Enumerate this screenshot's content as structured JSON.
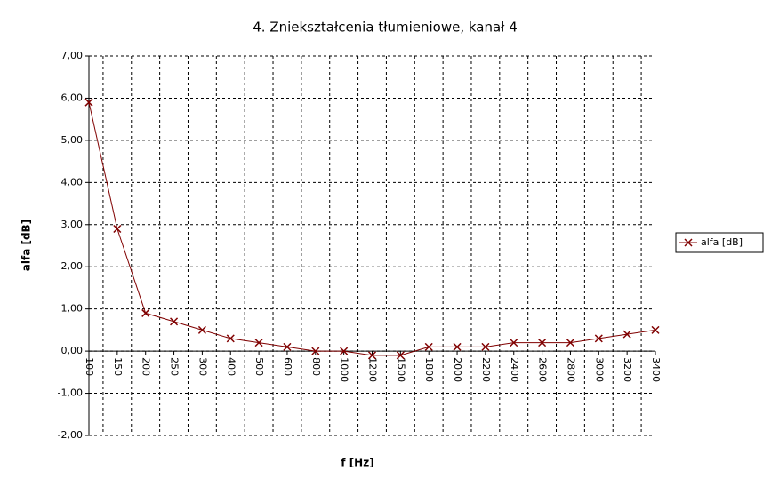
{
  "chart_data": {
    "type": "line",
    "title": "4. Zniekształcenia tłumieniowe, kanał 4",
    "x_label": "f [Hz]",
    "y_label": "alfa [dB]",
    "categories": [
      "100",
      "150",
      "200",
      "250",
      "300",
      "400",
      "500",
      "600",
      "800",
      "1000",
      "1200",
      "1500",
      "1800",
      "2000",
      "2200",
      "2400",
      "2600",
      "2800",
      "3000",
      "3200",
      "3400"
    ],
    "series": [
      {
        "name": "alfa [dB]",
        "color": "#800000",
        "values": [
          5.9,
          2.9,
          0.9,
          0.7,
          0.5,
          0.3,
          0.2,
          0.1,
          0,
          0,
          -0.1,
          -0.1,
          0.1,
          0.1,
          0.1,
          0.2,
          0.2,
          0.2,
          0.3,
          0.4,
          0.5
        ]
      }
    ],
    "ylim": [
      -2,
      7
    ],
    "yticks": [
      {
        "value": -2,
        "label": "-2,00"
      },
      {
        "value": -1,
        "label": "-1,00"
      },
      {
        "value": 0,
        "label": "0,00"
      },
      {
        "value": 1,
        "label": "1,00"
      },
      {
        "value": 2,
        "label": "2,00"
      },
      {
        "value": 3,
        "label": "3,00"
      },
      {
        "value": 4,
        "label": "4,00"
      },
      {
        "value": 5,
        "label": "5,00"
      },
      {
        "value": 6,
        "label": "6,00"
      },
      {
        "value": 7,
        "label": "7,00"
      }
    ],
    "grid": true,
    "legend": "right"
  }
}
